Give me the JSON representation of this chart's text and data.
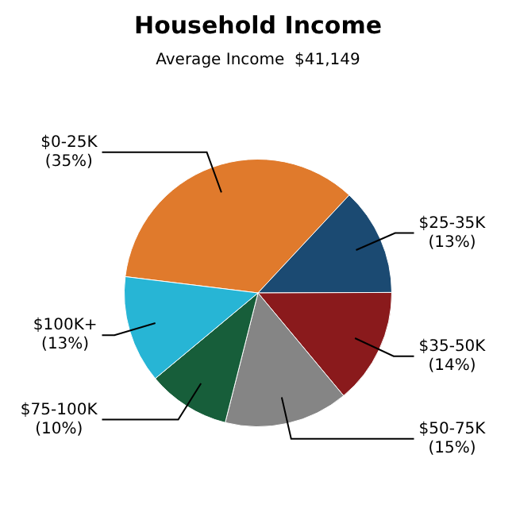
{
  "chart_data": {
    "type": "pie",
    "title": "Household Income",
    "subtitle": "Average Income  $41,149",
    "categories": [
      "$0-25K",
      "$25-35K",
      "$35-50K",
      "$50-75K",
      "$75-100K",
      "$100K+"
    ],
    "values": [
      35,
      13,
      14,
      15,
      10,
      13
    ],
    "value_labels": [
      "(35%)",
      "(13%)",
      "(14%)",
      "(15%)",
      "(10%)",
      "(13%)"
    ],
    "colors": [
      "#e07a2c",
      "#1b4a72",
      "#8a1a1c",
      "#858585",
      "#175e3a",
      "#27b5d5"
    ],
    "legend": false
  }
}
